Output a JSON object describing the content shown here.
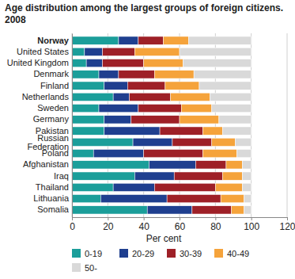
{
  "chart_data": {
    "type": "bar",
    "orientation": "horizontal",
    "stacked": true,
    "title": "Age distribution among the largest groups of foreign citizens. 2008",
    "x_label": "Per cent",
    "categories": [
      "Norway",
      "United States",
      "United Kingdom",
      "Denmark",
      "Finland",
      "Netherlands",
      "Sweden",
      "Germany",
      "Pakistan",
      "Russian Federation",
      "Poland",
      "Afghanistan",
      "Iraq",
      "Thailand",
      "Lithuania",
      "Somalia"
    ],
    "series": [
      {
        "name": "0-19",
        "color": "#1b9e9a",
        "values": [
          26,
          7,
          8,
          15,
          18,
          23,
          15,
          18,
          18,
          34,
          12,
          43,
          35,
          23,
          16,
          42
        ]
      },
      {
        "name": "20-29",
        "color": "#1f3f8f",
        "values": [
          11,
          10,
          9,
          11,
          13,
          9,
          22,
          15,
          31,
          22,
          28,
          26,
          22,
          23,
          37,
          25
        ]
      },
      {
        "name": "30-39",
        "color": "#9e2027",
        "values": [
          14,
          18,
          23,
          20,
          21,
          23,
          24,
          27,
          24,
          22,
          33,
          17,
          27,
          34,
          30,
          22
        ]
      },
      {
        "name": "40-49",
        "color": "#f5a33b",
        "values": [
          14,
          25,
          22,
          22,
          19,
          22,
          17,
          22,
          11,
          13,
          19,
          9,
          11,
          15,
          13,
          7
        ]
      },
      {
        "name": "50-",
        "color": "#d9d9d9",
        "values": [
          35,
          40,
          38,
          32,
          29,
          23,
          22,
          18,
          16,
          9,
          8,
          5,
          5,
          5,
          4,
          4
        ]
      }
    ],
    "xlim": [
      0,
      120
    ],
    "xticks": [
      0,
      20,
      40,
      60,
      80,
      100,
      120
    ],
    "grid": true,
    "legend": "bottom"
  }
}
